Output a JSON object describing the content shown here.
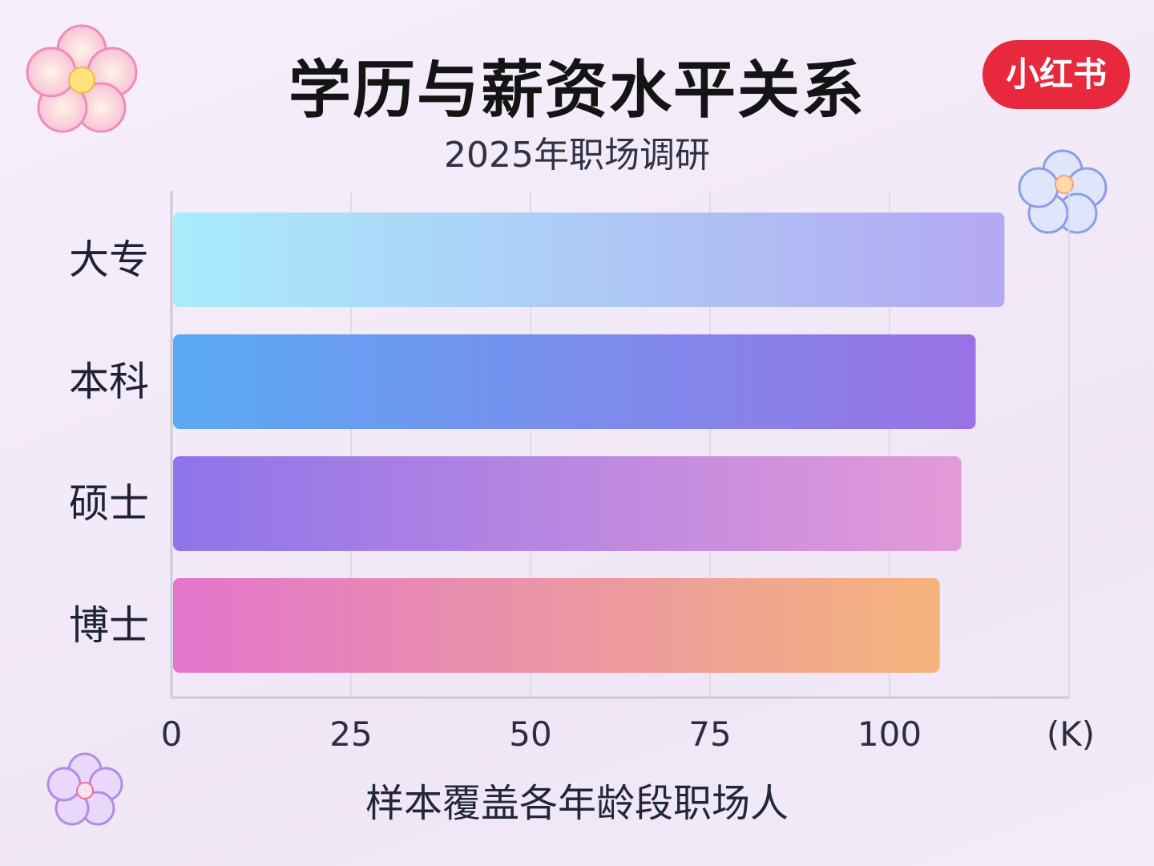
{
  "brand": {
    "label": "小红书",
    "color": "#e8283c"
  },
  "chart_data": {
    "type": "bar",
    "orientation": "horizontal",
    "title": "学历与薪资水平关系",
    "subtitle": "2025年职场调研",
    "xlabel": "样本覆盖各年龄段职场人",
    "x_unit": "(K)",
    "categories": [
      "大专",
      "本科",
      "硕士",
      "博士"
    ],
    "values": [
      116,
      112,
      110,
      107
    ],
    "xlim": [
      0,
      125
    ],
    "xticks": [
      0,
      25,
      50,
      75,
      100
    ],
    "grid": true,
    "legend": "none",
    "bar_gradients": [
      [
        "#a8ecfb",
        "#b4a8f2"
      ],
      [
        "#5aa9f5",
        "#9a72e6"
      ],
      [
        "#8f74ea",
        "#e49ad8"
      ],
      [
        "#e276cd",
        "#f5b47c"
      ]
    ]
  },
  "decorations": {
    "flower_icons": [
      "flower-icon",
      "flower-icon",
      "flower-icon"
    ]
  }
}
